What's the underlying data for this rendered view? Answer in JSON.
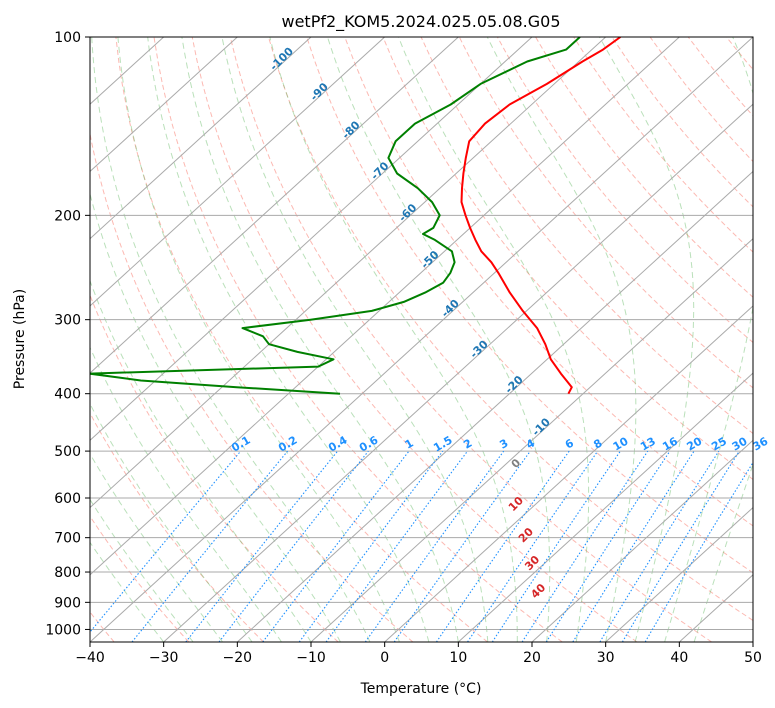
{
  "chart_data": {
    "type": "line",
    "title": "wetPf2_KOM5.2024.025.05.08.G05",
    "xlabel": "Temperature (°C)",
    "ylabel": "Pressure (hPa)",
    "xlim": [
      -40,
      50
    ],
    "ylim": [
      1050,
      100
    ],
    "y_scale": "log",
    "grid": true,
    "x_ticks": [
      -40,
      -30,
      -20,
      -10,
      0,
      10,
      20,
      30,
      40,
      50
    ],
    "y_ticks": [
      100,
      200,
      300,
      400,
      500,
      600,
      700,
      800,
      900,
      1000
    ],
    "colors": {
      "temperature": "#ff0000",
      "dewpoint": "#008000",
      "isotherm": "#aaaaaa",
      "dry_adiabat": "#fa8072",
      "moist_adiabat": "#66bb66",
      "mixing_ratio": "#1e90ff",
      "isotherm_label": "#1f77b4",
      "lcl_label_cold": "#808080",
      "lcl_label_warm": "#d62728",
      "dry_adiabat_origin": "#d2b48c"
    },
    "series": [
      {
        "key": "temperature",
        "p": [
          100,
          105,
          110,
          120,
          130,
          140,
          150,
          160,
          170,
          180,
          190,
          200,
          210,
          220,
          230,
          240,
          250,
          270,
          290,
          310,
          330,
          350,
          370,
          390,
          400
        ],
        "t": [
          -58,
          -58.5,
          -59.5,
          -61,
          -63,
          -63.5,
          -63,
          -61,
          -59,
          -57,
          -55,
          -52.5,
          -50,
          -47.5,
          -45,
          -42,
          -39.5,
          -35,
          -30.5,
          -26,
          -22.5,
          -19.5,
          -16,
          -12.5,
          -12
        ]
      },
      {
        "key": "dewpoint",
        "p": [
          100,
          105,
          110,
          120,
          130,
          140,
          150,
          160,
          170,
          180,
          190,
          200,
          210,
          215,
          220,
          230,
          240,
          250,
          260,
          270,
          280,
          290,
          300,
          310,
          320,
          330,
          340,
          350,
          360,
          370,
          380,
          390,
          400
        ],
        "t": [
          -63.5,
          -63.5,
          -67,
          -70,
          -71,
          -73,
          -73,
          -71.5,
          -68,
          -63,
          -59,
          -56,
          -55,
          -55.5,
          -53,
          -49,
          -47,
          -46,
          -45.5,
          -46.5,
          -48,
          -51,
          -58,
          -66,
          -62,
          -60,
          -55,
          -49,
          -50,
          -80,
          -72,
          -58,
          -43
        ]
      }
    ],
    "isotherm_labels": [
      "-100",
      "-90",
      "-80",
      "-70",
      "-60",
      "-50",
      "-40",
      "-30",
      "-20",
      "-10"
    ],
    "mixing_ratio_labels": [
      "0.1",
      "0.2",
      "0.4",
      "0.6",
      "1",
      "1.5",
      "2",
      "3",
      "4",
      "6",
      "8",
      "10",
      "13",
      "16",
      "20",
      "25",
      "30",
      "36"
    ],
    "lcl_labels": [
      "0",
      "10",
      "20",
      "30",
      "40"
    ]
  }
}
